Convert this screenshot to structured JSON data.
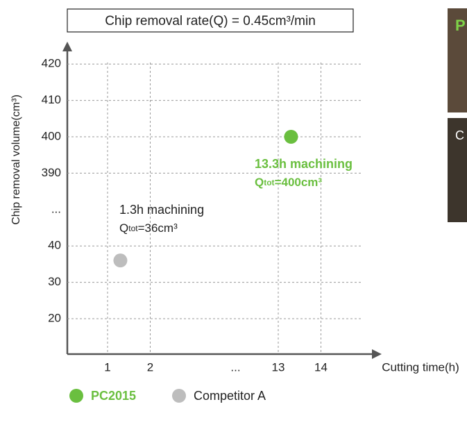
{
  "chart_data": {
    "type": "scatter",
    "title": "Chip removal rate(Q) = 0.45cm³/min",
    "xlabel": "Cutting time(h)",
    "ylabel": "Chip removal volume(cm³)",
    "xticks": [
      1,
      2,
      "...",
      13,
      14
    ],
    "yticks": [
      20,
      30,
      40,
      "...",
      390,
      400,
      410,
      420
    ],
    "grid": true,
    "series": [
      {
        "name": "PC2015",
        "color": "#6abf3f",
        "x": [
          13.3
        ],
        "values": [
          400
        ],
        "annotation": [
          "13.3h machining",
          "Q",
          "tot",
          "=400cm³"
        ]
      },
      {
        "name": "Competitor A",
        "color": "#bdbdbd",
        "x": [
          1.3
        ],
        "values": [
          36
        ],
        "annotation": [
          "1.3h machining",
          "Q",
          "tot",
          "=36cm³"
        ]
      }
    ],
    "side_panels": [
      "P",
      "C"
    ]
  }
}
